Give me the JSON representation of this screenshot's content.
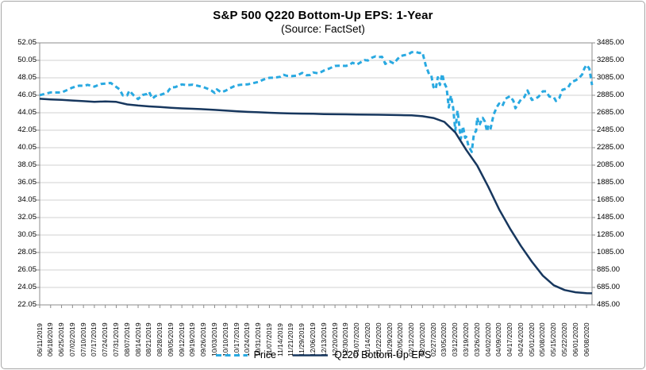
{
  "header": {
    "title": "S&P 500 Q220 Bottom-Up EPS: 1-Year",
    "subtitle": "(Source: FactSet)"
  },
  "colors": {
    "price_line": "#29A9E1",
    "eps_line": "#17375E",
    "gridline": "#d2d2d2",
    "axis": "#8c8c8c",
    "text": "#000000",
    "frame_border": "#a6a6a6",
    "background": "#ffffff"
  },
  "chart_data": {
    "type": "line",
    "title": "S&P 500 Q220 Bottom-Up EPS: 1-Year",
    "subtitle": "(Source: FactSet)",
    "grid": "horizontal",
    "legend_position": "bottom",
    "x_max": 50.5,
    "x_tick_labels": [
      "06/11/2019",
      "06/18/2019",
      "06/25/2019",
      "07/02/2019",
      "07/10/2019",
      "07/17/2019",
      "07/24/2019",
      "07/31/2019",
      "08/07/2019",
      "08/14/2019",
      "08/21/2019",
      "08/28/2019",
      "09/05/2019",
      "09/12/2019",
      "09/19/2019",
      "09/26/2019",
      "10/03/2019",
      "10/10/2019",
      "10/17/2019",
      "10/24/2019",
      "10/31/2019",
      "11/07/2019",
      "11/14/2019",
      "11/21/2019",
      "11/29/2019",
      "12/06/2019",
      "12/13/2019",
      "12/20/2019",
      "12/30/2019",
      "01/07/2020",
      "01/14/2020",
      "01/22/2020",
      "01/29/2020",
      "02/05/2020",
      "02/12/2020",
      "02/20/2020",
      "02/27/2020",
      "03/05/2020",
      "03/12/2020",
      "03/19/2020",
      "03/26/2020",
      "04/02/2020",
      "04/09/2020",
      "04/17/2020",
      "04/24/2020",
      "05/01/2020",
      "05/08/2020",
      "05/15/2020",
      "05/22/2020",
      "06/01/2020",
      "06/08/2020"
    ],
    "left_axis": {
      "min": 22.05,
      "max": 52.05,
      "labels": [
        "52.05",
        "50.05",
        "48.05",
        "46.05",
        "44.05",
        "42.05",
        "40.05",
        "38.05",
        "36.05",
        "34.05",
        "32.05",
        "30.05",
        "28.05",
        "26.05",
        "24.05",
        "22.05"
      ]
    },
    "right_axis": {
      "min": 485,
      "max": 3485,
      "labels": [
        "3485.00",
        "3285.00",
        "3085.00",
        "2885.00",
        "2685.00",
        "2485.00",
        "2285.00",
        "2085.00",
        "1885.00",
        "1685.00",
        "1485.00",
        "1285.00",
        "1085.00",
        "885.00",
        "685.00",
        "485.00"
      ]
    },
    "series": [
      {
        "name": "Price",
        "axis": "right",
        "style": "dashed",
        "color": "#29A9E1",
        "points": [
          [
            0,
            2886
          ],
          [
            1,
            2918
          ],
          [
            2,
            2917
          ],
          [
            3,
            2973
          ],
          [
            3.6,
            2995
          ],
          [
            4,
            2993
          ],
          [
            4.4,
            3004
          ],
          [
            5,
            2984
          ],
          [
            5.6,
            3014
          ],
          [
            6,
            3020
          ],
          [
            6.5,
            3026
          ],
          [
            7,
            2980
          ],
          [
            7.3,
            2953
          ],
          [
            7.6,
            2884
          ],
          [
            8,
            2884
          ],
          [
            8.2,
            2938
          ],
          [
            8.6,
            2883
          ],
          [
            9,
            2841
          ],
          [
            9.4,
            2889
          ],
          [
            9.8,
            2900
          ],
          [
            10,
            2924
          ],
          [
            10.3,
            2847
          ],
          [
            10.6,
            2878
          ],
          [
            11,
            2888
          ],
          [
            11.4,
            2906
          ],
          [
            11.7,
            2926
          ],
          [
            12,
            2976
          ],
          [
            12.4,
            2979
          ],
          [
            13,
            3010
          ],
          [
            13.5,
            3001
          ],
          [
            14,
            3007
          ],
          [
            14.5,
            2992
          ],
          [
            15,
            2978
          ],
          [
            15.3,
            2962
          ],
          [
            15.7,
            2940
          ],
          [
            16,
            2911
          ],
          [
            16.2,
            2952
          ],
          [
            16.6,
            2919
          ],
          [
            17,
            2938
          ],
          [
            17.4,
            2966
          ],
          [
            17.8,
            2990
          ],
          [
            18,
            2998
          ],
          [
            18.4,
            3006
          ],
          [
            19,
            3010
          ],
          [
            19.5,
            3023
          ],
          [
            20,
            3038
          ],
          [
            20.5,
            3067
          ],
          [
            21,
            3085
          ],
          [
            21.5,
            3087
          ],
          [
            22,
            3097
          ],
          [
            22.3,
            3120
          ],
          [
            22.6,
            3108
          ],
          [
            23,
            3104
          ],
          [
            23.5,
            3110
          ],
          [
            24,
            3141
          ],
          [
            24.4,
            3114
          ],
          [
            24.7,
            3117
          ],
          [
            25,
            3146
          ],
          [
            25.5,
            3136
          ],
          [
            26,
            3169
          ],
          [
            26.5,
            3192
          ],
          [
            27,
            3221
          ],
          [
            27.5,
            3224
          ],
          [
            28,
            3221
          ],
          [
            28.3,
            3231
          ],
          [
            28.6,
            3258
          ],
          [
            29,
            3237
          ],
          [
            29.4,
            3266
          ],
          [
            29.7,
            3289
          ],
          [
            30,
            3283
          ],
          [
            30.4,
            3317
          ],
          [
            30.7,
            3330
          ],
          [
            31,
            3322
          ],
          [
            31.3,
            3326
          ],
          [
            31.6,
            3244
          ],
          [
            32,
            3273
          ],
          [
            32.4,
            3249
          ],
          [
            32.7,
            3298
          ],
          [
            33,
            3335
          ],
          [
            33.4,
            3346
          ],
          [
            33.7,
            3353
          ],
          [
            34,
            3379
          ],
          [
            34.4,
            3380
          ],
          [
            34.7,
            3370
          ],
          [
            35,
            3373
          ],
          [
            35.3,
            3226
          ],
          [
            35.6,
            3128
          ],
          [
            35.8,
            3116
          ],
          [
            36,
            2979
          ],
          [
            36.2,
            2954
          ],
          [
            36.4,
            3090
          ],
          [
            36.6,
            3003
          ],
          [
            36.8,
            3130
          ],
          [
            37,
            3024
          ],
          [
            37.2,
            2972
          ],
          [
            37.4,
            2746
          ],
          [
            37.6,
            2882
          ],
          [
            37.8,
            2741
          ],
          [
            38,
            2481
          ],
          [
            38.2,
            2711
          ],
          [
            38.5,
            2386
          ],
          [
            38.7,
            2529
          ],
          [
            38.9,
            2398
          ],
          [
            39,
            2409
          ],
          [
            39.2,
            2305
          ],
          [
            39.5,
            2237
          ],
          [
            39.7,
            2447
          ],
          [
            39.9,
            2476
          ],
          [
            40,
            2630
          ],
          [
            40.2,
            2541
          ],
          [
            40.5,
            2627
          ],
          [
            40.7,
            2585
          ],
          [
            40.9,
            2471
          ],
          [
            41,
            2527
          ],
          [
            41.2,
            2489
          ],
          [
            41.5,
            2664
          ],
          [
            41.8,
            2750
          ],
          [
            42,
            2790
          ],
          [
            42.3,
            2762
          ],
          [
            42.6,
            2846
          ],
          [
            43,
            2875
          ],
          [
            43.3,
            2823
          ],
          [
            43.5,
            2737
          ],
          [
            43.8,
            2799
          ],
          [
            44,
            2837
          ],
          [
            44.3,
            2863
          ],
          [
            44.6,
            2940
          ],
          [
            45,
            2831
          ],
          [
            45.3,
            2843
          ],
          [
            45.6,
            2868
          ],
          [
            46,
            2930
          ],
          [
            46.3,
            2930
          ],
          [
            46.6,
            2870
          ],
          [
            47,
            2864
          ],
          [
            47.2,
            2820
          ],
          [
            47.5,
            2853
          ],
          [
            47.8,
            2949
          ],
          [
            48,
            2955
          ],
          [
            48.3,
            2972
          ],
          [
            48.6,
            3036
          ],
          [
            49,
            3056
          ],
          [
            49.3,
            3081
          ],
          [
            49.6,
            3123
          ],
          [
            49.8,
            3194
          ],
          [
            50,
            3232
          ],
          [
            50.25,
            3190
          ],
          [
            50.5,
            3002
          ]
        ]
      },
      {
        "name": "Q220 Bottom-Up EPS",
        "axis": "left",
        "style": "solid",
        "color": "#17375E",
        "points": [
          [
            0,
            45.65
          ],
          [
            1,
            45.58
          ],
          [
            2,
            45.52
          ],
          [
            3,
            45.45
          ],
          [
            4,
            45.38
          ],
          [
            5,
            45.3
          ],
          [
            6,
            45.35
          ],
          [
            7,
            45.3
          ],
          [
            8,
            45.0
          ],
          [
            9,
            44.88
          ],
          [
            10,
            44.78
          ],
          [
            11,
            44.7
          ],
          [
            12,
            44.62
          ],
          [
            13,
            44.55
          ],
          [
            14,
            44.5
          ],
          [
            15,
            44.45
          ],
          [
            16,
            44.38
          ],
          [
            17,
            44.3
          ],
          [
            18,
            44.22
          ],
          [
            19,
            44.15
          ],
          [
            20,
            44.1
          ],
          [
            21,
            44.05
          ],
          [
            22,
            44.0
          ],
          [
            23,
            43.97
          ],
          [
            24,
            43.95
          ],
          [
            25,
            43.93
          ],
          [
            26,
            43.9
          ],
          [
            27,
            43.88
          ],
          [
            28,
            43.87
          ],
          [
            29,
            43.85
          ],
          [
            30,
            43.83
          ],
          [
            31,
            43.82
          ],
          [
            32,
            43.8
          ],
          [
            33,
            43.78
          ],
          [
            34,
            43.75
          ],
          [
            35,
            43.65
          ],
          [
            36,
            43.45
          ],
          [
            37,
            43.0
          ],
          [
            38,
            41.8
          ],
          [
            39,
            39.8
          ],
          [
            40,
            38.0
          ],
          [
            41,
            35.6
          ],
          [
            42,
            33.0
          ],
          [
            43,
            30.8
          ],
          [
            44,
            28.8
          ],
          [
            45,
            27.0
          ],
          [
            46,
            25.4
          ],
          [
            47,
            24.3
          ],
          [
            48,
            23.75
          ],
          [
            49,
            23.5
          ],
          [
            50,
            23.4
          ],
          [
            50.5,
            23.38
          ]
        ]
      }
    ]
  },
  "legend": {
    "items": [
      {
        "label": "Price"
      },
      {
        "label": "Q220 Bottom-Up EPS"
      }
    ]
  }
}
